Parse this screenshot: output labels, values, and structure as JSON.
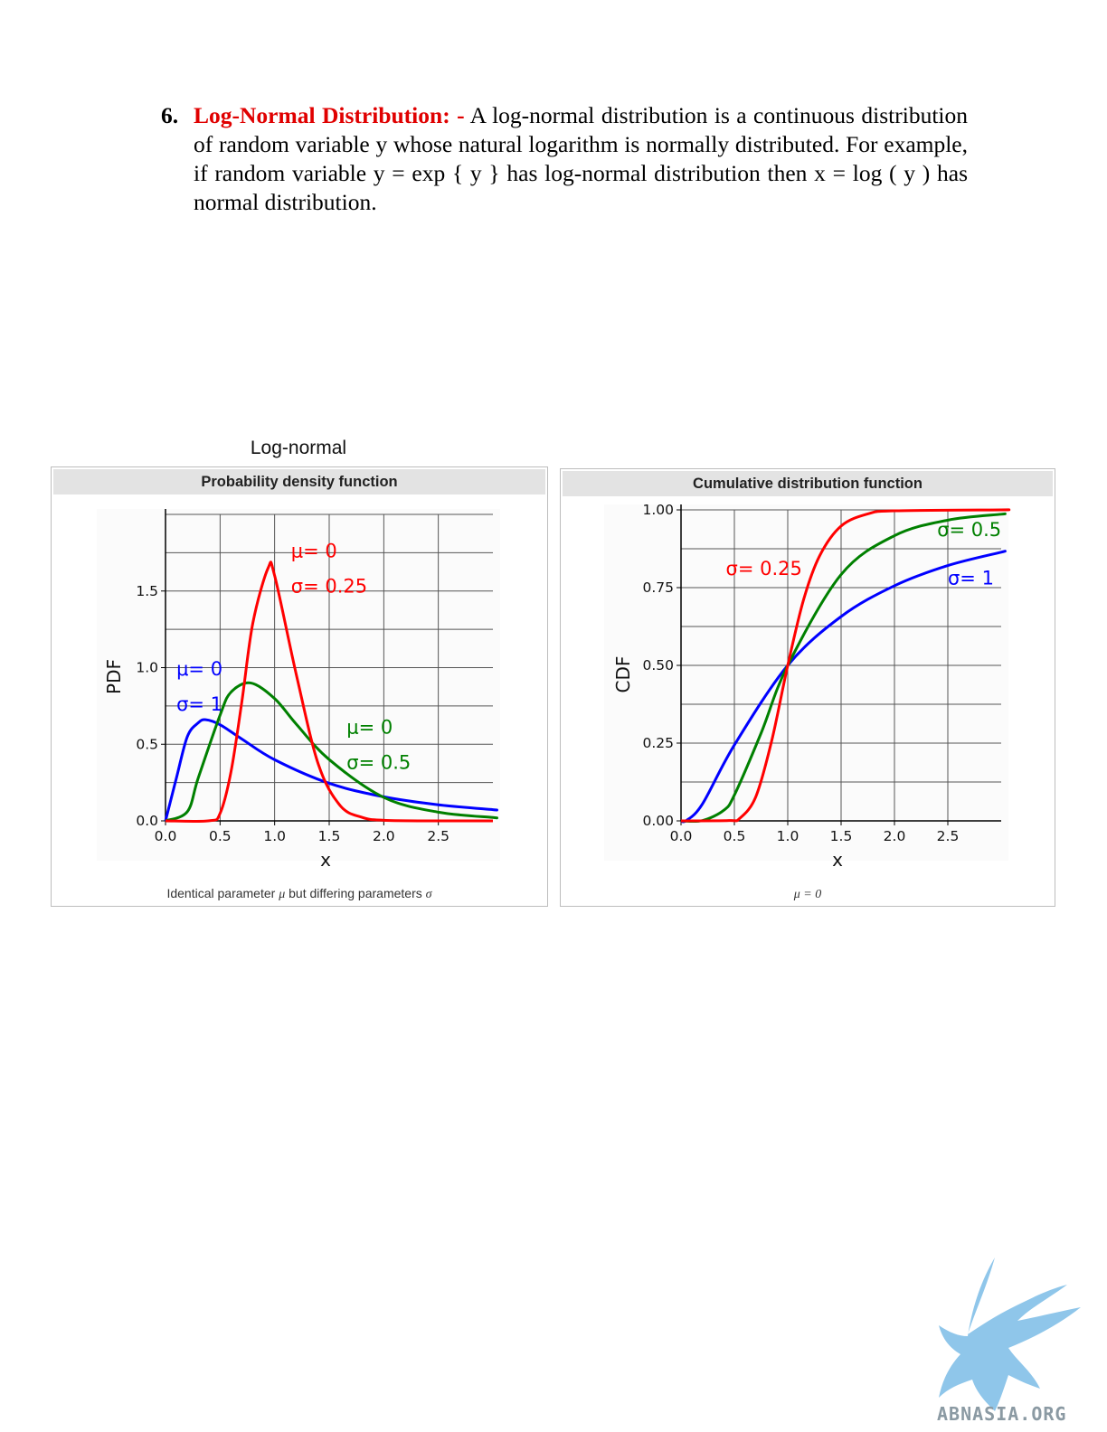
{
  "document": {
    "item_number": "6.",
    "term": "Log-Normal Distribution: -",
    "text": " A log-normal distribution is a continuous distribution of random variable y whose natural logarithm is normally distributed. For example, if random variable y = exp { y } has log-normal distribution then x = log ( y ) has normal distribution."
  },
  "figure": {
    "title": "Log-normal",
    "pdf_panel": {
      "strip_title": "Probability density function",
      "caption_prefix": "Identical parameter ",
      "caption_mu": "μ",
      "caption_middle": " but differing parameters ",
      "caption_sigma": "σ"
    },
    "cdf_panel": {
      "strip_title": "Cumulative distribution function",
      "caption": "μ = 0"
    }
  },
  "chart_data": [
    {
      "type": "line",
      "title": "Probability density function",
      "xlabel": "x",
      "ylabel": "PDF",
      "xlim": [
        0,
        3
      ],
      "ylim": [
        0,
        2
      ],
      "xticks": [
        "0.0",
        "0.5",
        "1.0",
        "1.5",
        "2.0",
        "2.5"
      ],
      "yticks": [
        "0.0",
        "0.5",
        "1.0",
        "1.5"
      ],
      "grid": true,
      "series": [
        {
          "mu": 0,
          "sigma": 1,
          "color": "#0000ff",
          "label_mu": "μ= 0",
          "label_sigma": "σ= 1",
          "x": [
            0.1,
            0.2,
            0.3,
            0.37,
            0.5,
            0.7,
            1.0,
            1.5,
            2.0,
            2.5,
            3.0
          ],
          "y": [
            0.28,
            0.55,
            0.64,
            0.66,
            0.627,
            0.534,
            0.399,
            0.245,
            0.157,
            0.105,
            0.073
          ]
        },
        {
          "mu": 0,
          "sigma": 0.5,
          "color": "#008000",
          "label_mu": "μ= 0",
          "label_sigma": "σ= 0.5",
          "x": [
            0.2,
            0.3,
            0.5,
            0.6,
            0.78,
            1.0,
            1.2,
            1.5,
            2.0,
            2.5,
            3.0
          ],
          "y": [
            0.06,
            0.28,
            0.69,
            0.84,
            0.9,
            0.798,
            0.63,
            0.4,
            0.153,
            0.057,
            0.022
          ]
        },
        {
          "mu": 0,
          "sigma": 0.25,
          "color": "#ff0000",
          "label_mu": "μ= 0",
          "label_sigma": "σ= 0.25",
          "x": [
            0.4,
            0.5,
            0.6,
            0.7,
            0.8,
            0.94,
            1.0,
            1.2,
            1.4,
            1.6,
            1.8,
            2.0,
            2.5
          ],
          "y": [
            0.001,
            0.049,
            0.32,
            0.78,
            1.29,
            1.65,
            1.6,
            0.95,
            0.37,
            0.1,
            0.023,
            0.004,
            0.0
          ]
        }
      ]
    },
    {
      "type": "line",
      "title": "Cumulative distribution function",
      "xlabel": "x",
      "ylabel": "CDF",
      "xlim": [
        0,
        3
      ],
      "ylim": [
        0,
        1
      ],
      "xticks": [
        "0.0",
        "0.5",
        "1.0",
        "1.5",
        "2.0",
        "2.5"
      ],
      "yticks": [
        "0.00",
        "0.25",
        "0.50",
        "0.75",
        "1.00"
      ],
      "grid": true,
      "series": [
        {
          "mu": 0,
          "sigma": 1,
          "color": "#0000ff",
          "label": "σ= 1",
          "x": [
            0.05,
            0.2,
            0.5,
            1.0,
            1.5,
            2.0,
            2.5,
            3.0
          ],
          "y": [
            0.001,
            0.054,
            0.244,
            0.5,
            0.657,
            0.756,
            0.821,
            0.864
          ]
        },
        {
          "mu": 0,
          "sigma": 0.5,
          "color": "#008000",
          "label": "σ= 0.5",
          "x": [
            0.2,
            0.4,
            0.5,
            0.75,
            1.0,
            1.5,
            2.0,
            2.5,
            3.0
          ],
          "y": [
            0.001,
            0.034,
            0.083,
            0.282,
            0.5,
            0.792,
            0.917,
            0.967,
            0.986
          ]
        },
        {
          "mu": 0,
          "sigma": 0.25,
          "color": "#ff0000",
          "label": "σ= 0.25",
          "x": [
            0.45,
            0.55,
            0.7,
            0.85,
            1.0,
            1.15,
            1.3,
            1.5,
            1.75,
            2.0,
            3.0
          ],
          "y": [
            0.001,
            0.008,
            0.077,
            0.258,
            0.5,
            0.713,
            0.853,
            0.948,
            0.987,
            0.997,
            1.0
          ]
        }
      ]
    }
  ],
  "watermark": {
    "text": "ABNASIA.ORG",
    "color": "#8fc6ea"
  }
}
